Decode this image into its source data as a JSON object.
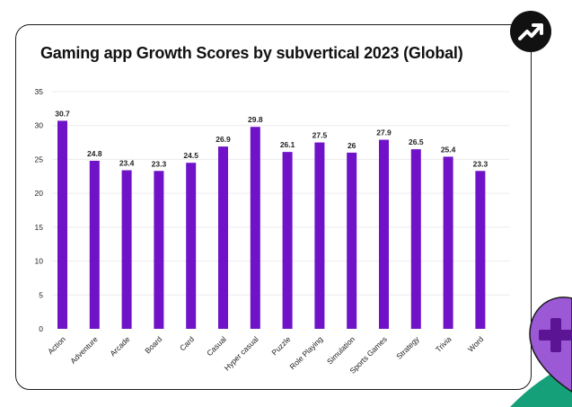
{
  "chart_data": {
    "type": "bar",
    "title": "Gaming app Growth Scores by subvertical 2023 (Global)",
    "categories": [
      "Action",
      "Adventure",
      "Arcade",
      "Board",
      "Card",
      "Casual",
      "Hyper casual",
      "Puzzle",
      "Role Playing",
      "Simulation",
      "Sports Games",
      "Strategy",
      "Trivia",
      "Word"
    ],
    "values": [
      30.7,
      24.8,
      23.4,
      23.3,
      24.5,
      26.9,
      29.8,
      26.1,
      27.5,
      26,
      27.9,
      26.5,
      25.4,
      23.3
    ],
    "value_labels": [
      "30.7",
      "24.8",
      "23.4",
      "23.3",
      "24.5",
      "26.9",
      "29.8",
      "26.1",
      "27.5",
      "26",
      "27.9",
      "26.5",
      "25.4",
      "23.3"
    ],
    "y_ticks": [
      "0",
      "5",
      "10",
      "15",
      "20",
      "25",
      "30",
      "35"
    ],
    "ylim": [
      0,
      35
    ],
    "xlabel": "",
    "ylabel": "",
    "grid": true,
    "legend": "none",
    "colors": {
      "bar": "#7012c7",
      "grid": "#ececec",
      "text": "#222222"
    }
  },
  "icons": {
    "badge": "trending-up-icon",
    "corner": "purple-plus-map-pin-icon"
  }
}
